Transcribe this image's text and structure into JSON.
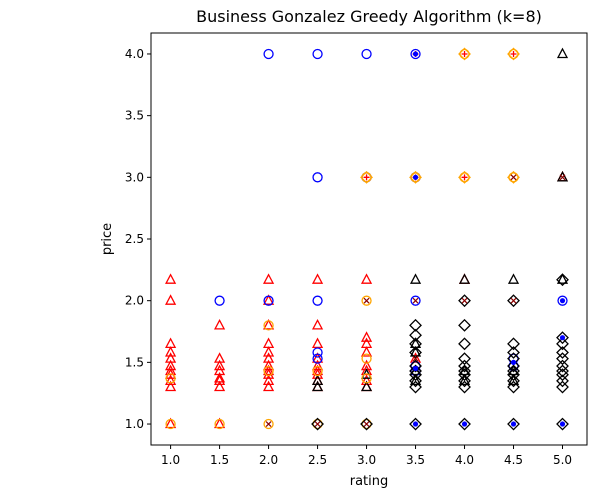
{
  "chart_data": {
    "type": "scatter",
    "title": "Business Gonzalez Greedy Algorithm (k=8)",
    "xlabel": "rating",
    "ylabel": "price",
    "xlim": [
      0.8,
      5.25
    ],
    "ylim": [
      0.83,
      4.17
    ],
    "xticks": [
      1.0,
      1.5,
      2.0,
      2.5,
      3.0,
      3.5,
      4.0,
      4.5,
      5.0
    ],
    "xtick_labels": [
      "1.0",
      "1.5",
      "2.0",
      "2.5",
      "3.0",
      "3.5",
      "4.0",
      "4.5",
      "5.0"
    ],
    "yticks": [
      1.0,
      1.5,
      2.0,
      2.5,
      3.0,
      3.5,
      4.0
    ],
    "ytick_labels": [
      "1.0",
      "1.5",
      "2.0",
      "2.5",
      "3.0",
      "3.5",
      "4.0"
    ],
    "grid": false,
    "legend": "none",
    "series": [
      {
        "marker": "triangle",
        "color": "#ff0000",
        "points": [
          [
            1.0,
            2.17
          ],
          [
            1.0,
            2.0
          ],
          [
            1.0,
            1.65
          ],
          [
            1.0,
            1.58
          ],
          [
            1.0,
            1.53
          ],
          [
            1.0,
            1.47
          ],
          [
            1.0,
            1.43
          ],
          [
            1.0,
            1.4
          ],
          [
            1.0,
            1.35
          ],
          [
            1.0,
            1.3
          ],
          [
            1.0,
            1.0
          ],
          [
            1.5,
            1.8
          ],
          [
            1.5,
            1.53
          ],
          [
            1.5,
            1.47
          ],
          [
            1.5,
            1.43
          ],
          [
            1.5,
            1.37
          ],
          [
            1.5,
            1.35
          ],
          [
            1.5,
            1.3
          ],
          [
            1.5,
            1.0
          ],
          [
            2.0,
            2.17
          ],
          [
            2.0,
            2.0
          ],
          [
            2.0,
            1.8
          ],
          [
            2.0,
            1.65
          ],
          [
            2.0,
            1.58
          ],
          [
            2.0,
            1.53
          ],
          [
            2.0,
            1.47
          ],
          [
            2.0,
            1.43
          ],
          [
            2.0,
            1.4
          ],
          [
            2.0,
            1.35
          ],
          [
            2.0,
            1.3
          ],
          [
            2.5,
            2.17
          ],
          [
            2.5,
            1.8
          ],
          [
            2.5,
            1.65
          ],
          [
            2.5,
            1.53
          ],
          [
            2.5,
            1.47
          ],
          [
            2.5,
            1.43
          ],
          [
            2.5,
            1.4
          ],
          [
            2.5,
            1.35
          ],
          [
            2.5,
            1.3
          ],
          [
            3.0,
            2.17
          ],
          [
            3.0,
            1.7
          ],
          [
            3.0,
            1.65
          ],
          [
            3.0,
            1.58
          ],
          [
            3.0,
            1.47
          ],
          [
            3.0,
            1.43
          ],
          [
            3.0,
            1.35
          ],
          [
            3.0,
            1.3
          ],
          [
            3.5,
            1.53
          ],
          [
            4.0,
            2.17
          ],
          [
            5.0,
            3.0
          ]
        ]
      },
      {
        "marker": "triangle",
        "color": "#000000",
        "points": [
          [
            2.5,
            1.35
          ],
          [
            2.5,
            1.3
          ],
          [
            3.0,
            1.4
          ],
          [
            3.0,
            1.3
          ],
          [
            3.5,
            2.17
          ],
          [
            3.5,
            1.65
          ],
          [
            3.5,
            1.58
          ],
          [
            3.5,
            1.43
          ],
          [
            3.5,
            1.35
          ],
          [
            4.0,
            2.17
          ],
          [
            4.0,
            1.43
          ],
          [
            4.0,
            1.35
          ],
          [
            4.5,
            2.17
          ],
          [
            4.5,
            1.43
          ],
          [
            4.5,
            1.35
          ],
          [
            5.0,
            4.0
          ],
          [
            5.0,
            3.0
          ],
          [
            5.0,
            2.17
          ]
        ]
      },
      {
        "marker": "circle",
        "color": "#0000ff",
        "points": [
          [
            1.5,
            2.0
          ],
          [
            2.0,
            4.0
          ],
          [
            2.0,
            2.0
          ],
          [
            2.5,
            4.0
          ],
          [
            2.5,
            3.0
          ],
          [
            2.5,
            2.0
          ],
          [
            2.5,
            1.58
          ],
          [
            2.5,
            1.53
          ],
          [
            3.0,
            4.0
          ],
          [
            3.0,
            3.0
          ],
          [
            3.5,
            4.0
          ],
          [
            3.5,
            3.0
          ],
          [
            3.5,
            2.0
          ],
          [
            3.5,
            1.47
          ],
          [
            3.5,
            1.43
          ],
          [
            4.5,
            1.53
          ],
          [
            4.5,
            1.47
          ],
          [
            5.0,
            2.0
          ]
        ]
      },
      {
        "marker": "circle",
        "color": "#ffa500",
        "points": [
          [
            1.0,
            1.37
          ],
          [
            1.0,
            1.0
          ],
          [
            1.5,
            1.0
          ],
          [
            2.0,
            1.8
          ],
          [
            2.0,
            1.43
          ],
          [
            2.0,
            1.0
          ],
          [
            2.5,
            1.43
          ],
          [
            2.5,
            1.0
          ],
          [
            3.0,
            3.0
          ],
          [
            3.0,
            2.0
          ],
          [
            3.0,
            1.53
          ],
          [
            3.0,
            1.37
          ],
          [
            3.0,
            1.0
          ],
          [
            3.5,
            3.0
          ],
          [
            4.0,
            4.0
          ],
          [
            4.0,
            3.0
          ],
          [
            4.5,
            4.0
          ],
          [
            4.5,
            3.0
          ]
        ]
      },
      {
        "marker": "diamond",
        "color": "#000000",
        "points": [
          [
            2.5,
            1.0
          ],
          [
            3.0,
            1.0
          ],
          [
            3.5,
            1.8
          ],
          [
            3.5,
            1.72
          ],
          [
            3.5,
            1.65
          ],
          [
            3.5,
            1.58
          ],
          [
            3.5,
            1.47
          ],
          [
            3.5,
            1.43
          ],
          [
            3.5,
            1.4
          ],
          [
            3.5,
            1.35
          ],
          [
            3.5,
            1.3
          ],
          [
            3.5,
            1.0
          ],
          [
            4.0,
            2.0
          ],
          [
            4.0,
            1.8
          ],
          [
            4.0,
            1.65
          ],
          [
            4.0,
            1.53
          ],
          [
            4.0,
            1.47
          ],
          [
            4.0,
            1.43
          ],
          [
            4.0,
            1.4
          ],
          [
            4.0,
            1.35
          ],
          [
            4.0,
            1.3
          ],
          [
            4.0,
            1.0
          ],
          [
            4.5,
            2.0
          ],
          [
            4.5,
            1.65
          ],
          [
            4.5,
            1.58
          ],
          [
            4.5,
            1.53
          ],
          [
            4.5,
            1.47
          ],
          [
            4.5,
            1.43
          ],
          [
            4.5,
            1.4
          ],
          [
            4.5,
            1.35
          ],
          [
            4.5,
            1.3
          ],
          [
            4.5,
            1.0
          ],
          [
            5.0,
            2.17
          ],
          [
            5.0,
            1.7
          ],
          [
            5.0,
            1.65
          ],
          [
            5.0,
            1.58
          ],
          [
            5.0,
            1.53
          ],
          [
            5.0,
            1.47
          ],
          [
            5.0,
            1.43
          ],
          [
            5.0,
            1.4
          ],
          [
            5.0,
            1.35
          ],
          [
            5.0,
            1.3
          ],
          [
            5.0,
            1.0
          ]
        ]
      },
      {
        "marker": "diamond",
        "color": "#ffa500",
        "points": [
          [
            3.0,
            3.0
          ],
          [
            3.5,
            3.0
          ],
          [
            4.0,
            4.0
          ],
          [
            4.0,
            3.0
          ],
          [
            4.5,
            4.0
          ],
          [
            4.5,
            3.0
          ]
        ]
      },
      {
        "marker": "plus",
        "color": "#ff0000",
        "points": [
          [
            3.0,
            3.0
          ],
          [
            3.5,
            4.0
          ],
          [
            3.5,
            3.0
          ],
          [
            4.0,
            4.0
          ],
          [
            4.0,
            3.0
          ],
          [
            4.5,
            4.0
          ]
        ]
      },
      {
        "marker": "x",
        "color": "#8b0000",
        "points": [
          [
            2.0,
            1.0
          ],
          [
            2.5,
            1.0
          ],
          [
            3.0,
            1.0
          ],
          [
            3.0,
            2.0
          ],
          [
            3.5,
            2.0
          ],
          [
            3.5,
            1.53
          ],
          [
            4.0,
            2.0
          ],
          [
            4.5,
            3.0
          ],
          [
            4.5,
            2.0
          ],
          [
            5.0,
            3.0
          ]
        ]
      },
      {
        "marker": "dot",
        "color": "#0000ff",
        "points": [
          [
            3.5,
            1.0
          ],
          [
            4.0,
            1.0
          ],
          [
            4.5,
            1.0
          ],
          [
            5.0,
            1.0
          ],
          [
            5.0,
            1.7
          ],
          [
            5.0,
            2.0
          ],
          [
            3.5,
            1.45
          ],
          [
            4.5,
            1.5
          ],
          [
            3.5,
            3.0
          ],
          [
            3.5,
            4.0
          ]
        ]
      }
    ]
  }
}
